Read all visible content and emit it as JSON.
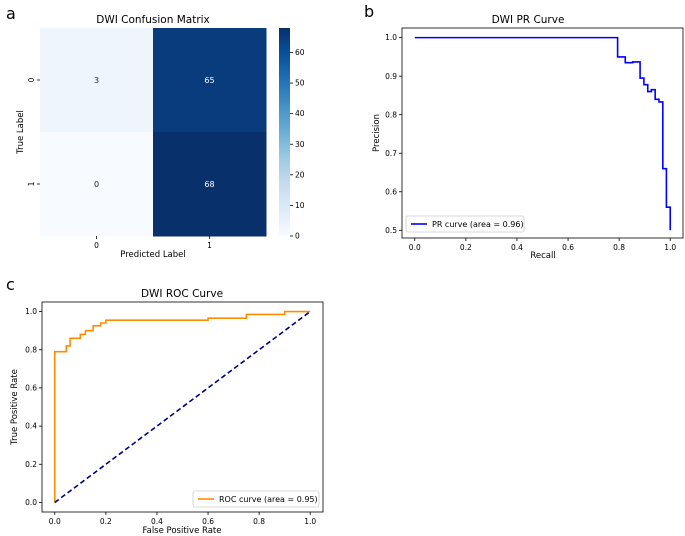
{
  "panels": [
    "a",
    "b",
    "c"
  ],
  "chart_data": [
    {
      "type": "heatmap",
      "title": "DWI Confusion Matrix",
      "xlabel": "Predicted Label",
      "ylabel": "True Label",
      "x_categories": [
        "0",
        "1"
      ],
      "y_categories": [
        "0",
        "1"
      ],
      "values": [
        [
          3,
          65
        ],
        [
          0,
          68
        ]
      ],
      "colorbar_ticks": [
        "0",
        "10",
        "20",
        "30",
        "40",
        "50",
        "60"
      ],
      "colorbar_range": [
        0,
        68
      ],
      "colormap": "Blues"
    },
    {
      "type": "line",
      "title": "DWI PR Curve",
      "xlabel": "Recall",
      "ylabel": "Precision",
      "xlim": [
        -0.05,
        1.05
      ],
      "ylim": [
        0.48,
        1.025
      ],
      "xticks": [
        "0.0",
        "0.2",
        "0.4",
        "0.6",
        "0.8",
        "1.0"
      ],
      "yticks": [
        "0.5",
        "0.6",
        "0.7",
        "0.8",
        "0.9",
        "1.0"
      ],
      "legend_position": "lower-left",
      "series": [
        {
          "name": "PR curve (area = 0.96)",
          "color": "#0000ff",
          "x": [
            0.0,
            0.794,
            0.794,
            0.824,
            0.824,
            0.853,
            0.853,
            0.882,
            0.882,
            0.897,
            0.897,
            0.912,
            0.912,
            0.926,
            0.926,
            0.941,
            0.941,
            0.956,
            0.956,
            0.971,
            0.971,
            0.985,
            0.985,
            1.0,
            1.0
          ],
          "y": [
            1.0,
            1.0,
            0.95,
            0.95,
            0.935,
            0.935,
            0.937,
            0.937,
            0.895,
            0.895,
            0.878,
            0.878,
            0.86,
            0.86,
            0.865,
            0.865,
            0.84,
            0.84,
            0.833,
            0.833,
            0.66,
            0.66,
            0.56,
            0.56,
            0.5
          ]
        }
      ]
    },
    {
      "type": "line",
      "title": "DWI ROC Curve",
      "xlabel": "False Positive Rate",
      "ylabel": "True Positive Rate",
      "xlim": [
        -0.05,
        1.05
      ],
      "ylim": [
        -0.05,
        1.05
      ],
      "xticks": [
        "0.0",
        "0.2",
        "0.4",
        "0.6",
        "0.8",
        "1.0"
      ],
      "yticks": [
        "0.0",
        "0.2",
        "0.4",
        "0.6",
        "0.8",
        "1.0"
      ],
      "legend_position": "lower-right",
      "series": [
        {
          "name": "ROC curve (area = 0.95)",
          "color": "#ff8c00",
          "x": [
            0.0,
            0.0,
            0.045,
            0.045,
            0.06,
            0.06,
            0.1,
            0.1,
            0.12,
            0.12,
            0.15,
            0.15,
            0.18,
            0.18,
            0.2,
            0.2,
            0.6,
            0.6,
            0.75,
            0.75,
            0.9,
            0.9,
            1.0
          ],
          "y": [
            0.0,
            0.79,
            0.79,
            0.82,
            0.82,
            0.86,
            0.86,
            0.88,
            0.88,
            0.9,
            0.9,
            0.925,
            0.925,
            0.94,
            0.94,
            0.955,
            0.955,
            0.965,
            0.965,
            0.985,
            0.985,
            1.0,
            1.0
          ]
        },
        {
          "name": "",
          "color": "#000080",
          "style": "dashed",
          "x": [
            0.0,
            1.0
          ],
          "y": [
            0.0,
            1.0
          ]
        }
      ]
    }
  ]
}
